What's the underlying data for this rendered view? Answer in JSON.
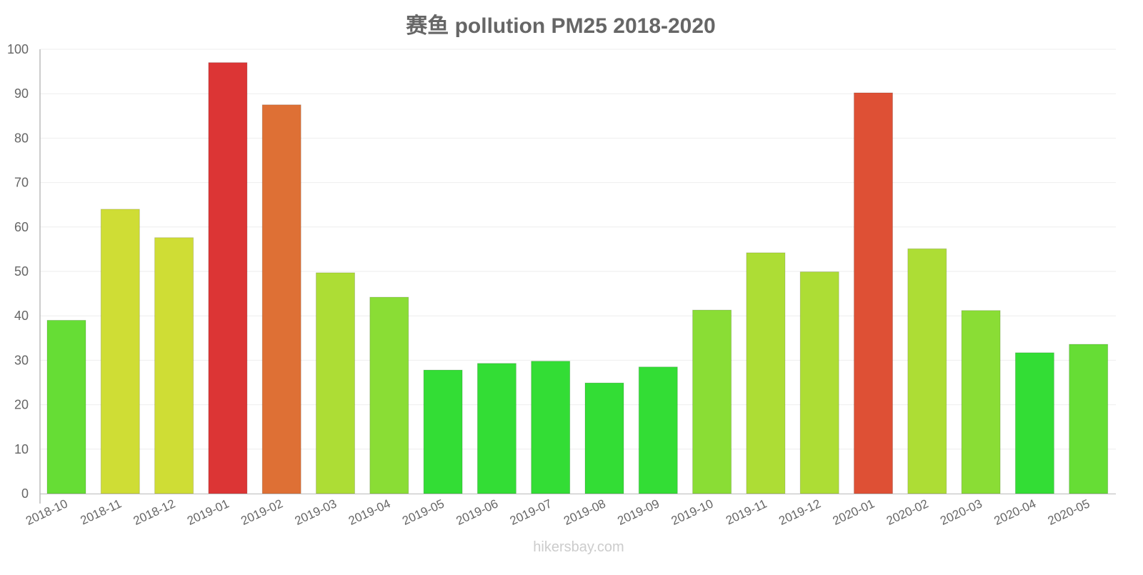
{
  "chart_data": {
    "type": "bar",
    "title": "赛鱼 pollution PM25 2018-2020",
    "xlabel": "",
    "ylabel": "",
    "ylim": [
      0,
      100
    ],
    "yticks": [
      0,
      10,
      20,
      30,
      40,
      50,
      60,
      70,
      80,
      90,
      100
    ],
    "grid": true,
    "categories": [
      "2018-10",
      "2018-11",
      "2018-12",
      "2019-01",
      "2019-02",
      "2019-03",
      "2019-04",
      "2019-05",
      "2019-06",
      "2019-07",
      "2019-08",
      "2019-09",
      "2019-10",
      "2019-11",
      "2019-12",
      "2020-01",
      "2020-02",
      "2020-03",
      "2020-04",
      "2020-05"
    ],
    "values": [
      39,
      64,
      57.6,
      97,
      87.5,
      49.7,
      44.2,
      27.8,
      29.3,
      29.8,
      24.9,
      28.5,
      41.3,
      54.2,
      49.9,
      90.2,
      55.1,
      41.2,
      31.7,
      33.6
    ],
    "colors": [
      "#66dd35",
      "#cfdd35",
      "#cfdd35",
      "#dc3535",
      "#de7035",
      "#addd35",
      "#8add35",
      "#33dd35",
      "#33dd35",
      "#33dd35",
      "#33dd35",
      "#33dd35",
      "#8add35",
      "#addd35",
      "#addd35",
      "#de5035",
      "#addd35",
      "#8add35",
      "#33dd35",
      "#66dd35"
    ]
  },
  "footer": "hikersbay.com"
}
